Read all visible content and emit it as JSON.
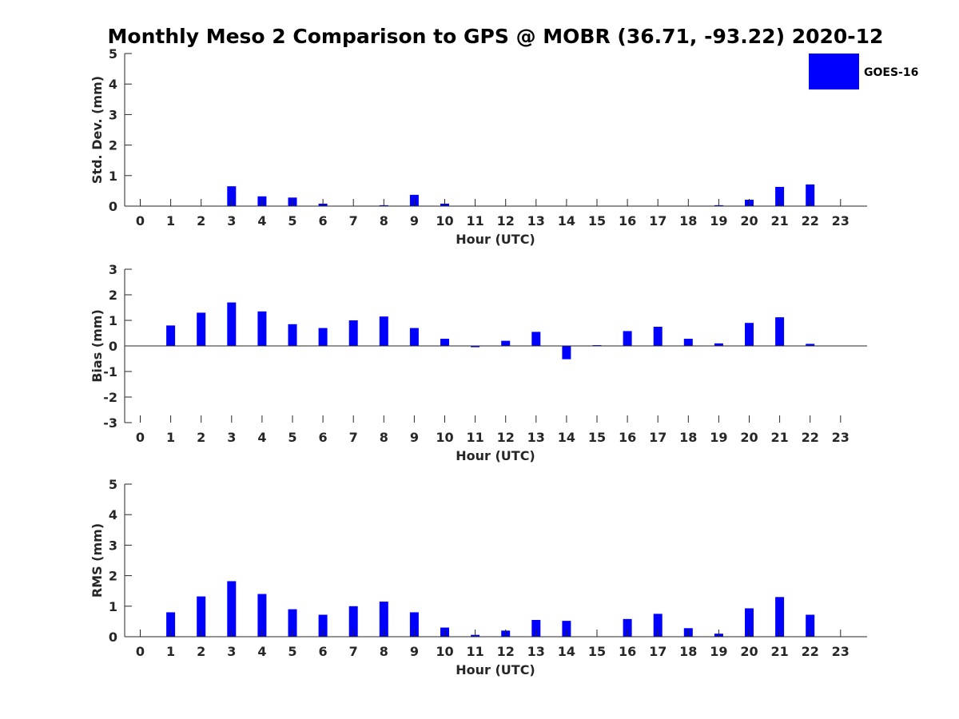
{
  "chart_data": {
    "title": "Monthly Meso 2 Comparison to GPS @ MOBR (36.71, -93.22) 2020-12",
    "legend": {
      "label": "GOES-16",
      "color": "#0000ff",
      "position": "top-right"
    },
    "bar_color": "#0000ff",
    "panels": [
      {
        "type": "bar",
        "name": "std-dev",
        "xlabel": "Hour (UTC)",
        "ylabel": "Std. Dev. (mm)",
        "ylim": [
          0,
          5
        ],
        "yticks": [
          "0",
          "1",
          "2",
          "3",
          "4",
          "5"
        ],
        "categories": [
          "0",
          "1",
          "2",
          "3",
          "4",
          "5",
          "6",
          "7",
          "8",
          "9",
          "10",
          "11",
          "12",
          "13",
          "14",
          "15",
          "16",
          "17",
          "18",
          "19",
          "20",
          "21",
          "22",
          "23"
        ],
        "values": [
          0,
          0,
          0,
          0.65,
          0.32,
          0.28,
          0.08,
          0,
          0.03,
          0.37,
          0.08,
          0,
          0,
          0,
          0,
          0,
          0,
          0,
          0,
          0.03,
          0.21,
          0.63,
          0.71,
          0
        ]
      },
      {
        "type": "bar",
        "name": "bias",
        "xlabel": "Hour (UTC)",
        "ylabel": "Bias (mm)",
        "ylim": [
          -3,
          3
        ],
        "yticks": [
          "-3",
          "-2",
          "-1",
          "0",
          "1",
          "2",
          "3"
        ],
        "categories": [
          "0",
          "1",
          "2",
          "3",
          "4",
          "5",
          "6",
          "7",
          "8",
          "9",
          "10",
          "11",
          "12",
          "13",
          "14",
          "15",
          "16",
          "17",
          "18",
          "19",
          "20",
          "21",
          "22",
          "23"
        ],
        "values": [
          0,
          0.8,
          1.3,
          1.7,
          1.35,
          0.85,
          0.7,
          1.0,
          1.15,
          0.7,
          0.28,
          -0.05,
          0.2,
          0.55,
          -0.52,
          0.03,
          0.58,
          0.75,
          0.28,
          0.1,
          0.9,
          1.12,
          0.08,
          0
        ]
      },
      {
        "type": "bar",
        "name": "rms",
        "xlabel": "Hour (UTC)",
        "ylabel": "RMS (mm)",
        "ylim": [
          0,
          5
        ],
        "yticks": [
          "0",
          "1",
          "2",
          "3",
          "4",
          "5"
        ],
        "categories": [
          "0",
          "1",
          "2",
          "3",
          "4",
          "5",
          "6",
          "7",
          "8",
          "9",
          "10",
          "11",
          "12",
          "13",
          "14",
          "15",
          "16",
          "17",
          "18",
          "19",
          "20",
          "21",
          "22",
          "23"
        ],
        "values": [
          0,
          0.8,
          1.32,
          1.82,
          1.4,
          0.9,
          0.72,
          1.0,
          1.15,
          0.8,
          0.3,
          0.06,
          0.2,
          0.55,
          0.52,
          0,
          0.58,
          0.75,
          0.28,
          0.1,
          0.93,
          1.3,
          0.72,
          0
        ]
      }
    ]
  }
}
